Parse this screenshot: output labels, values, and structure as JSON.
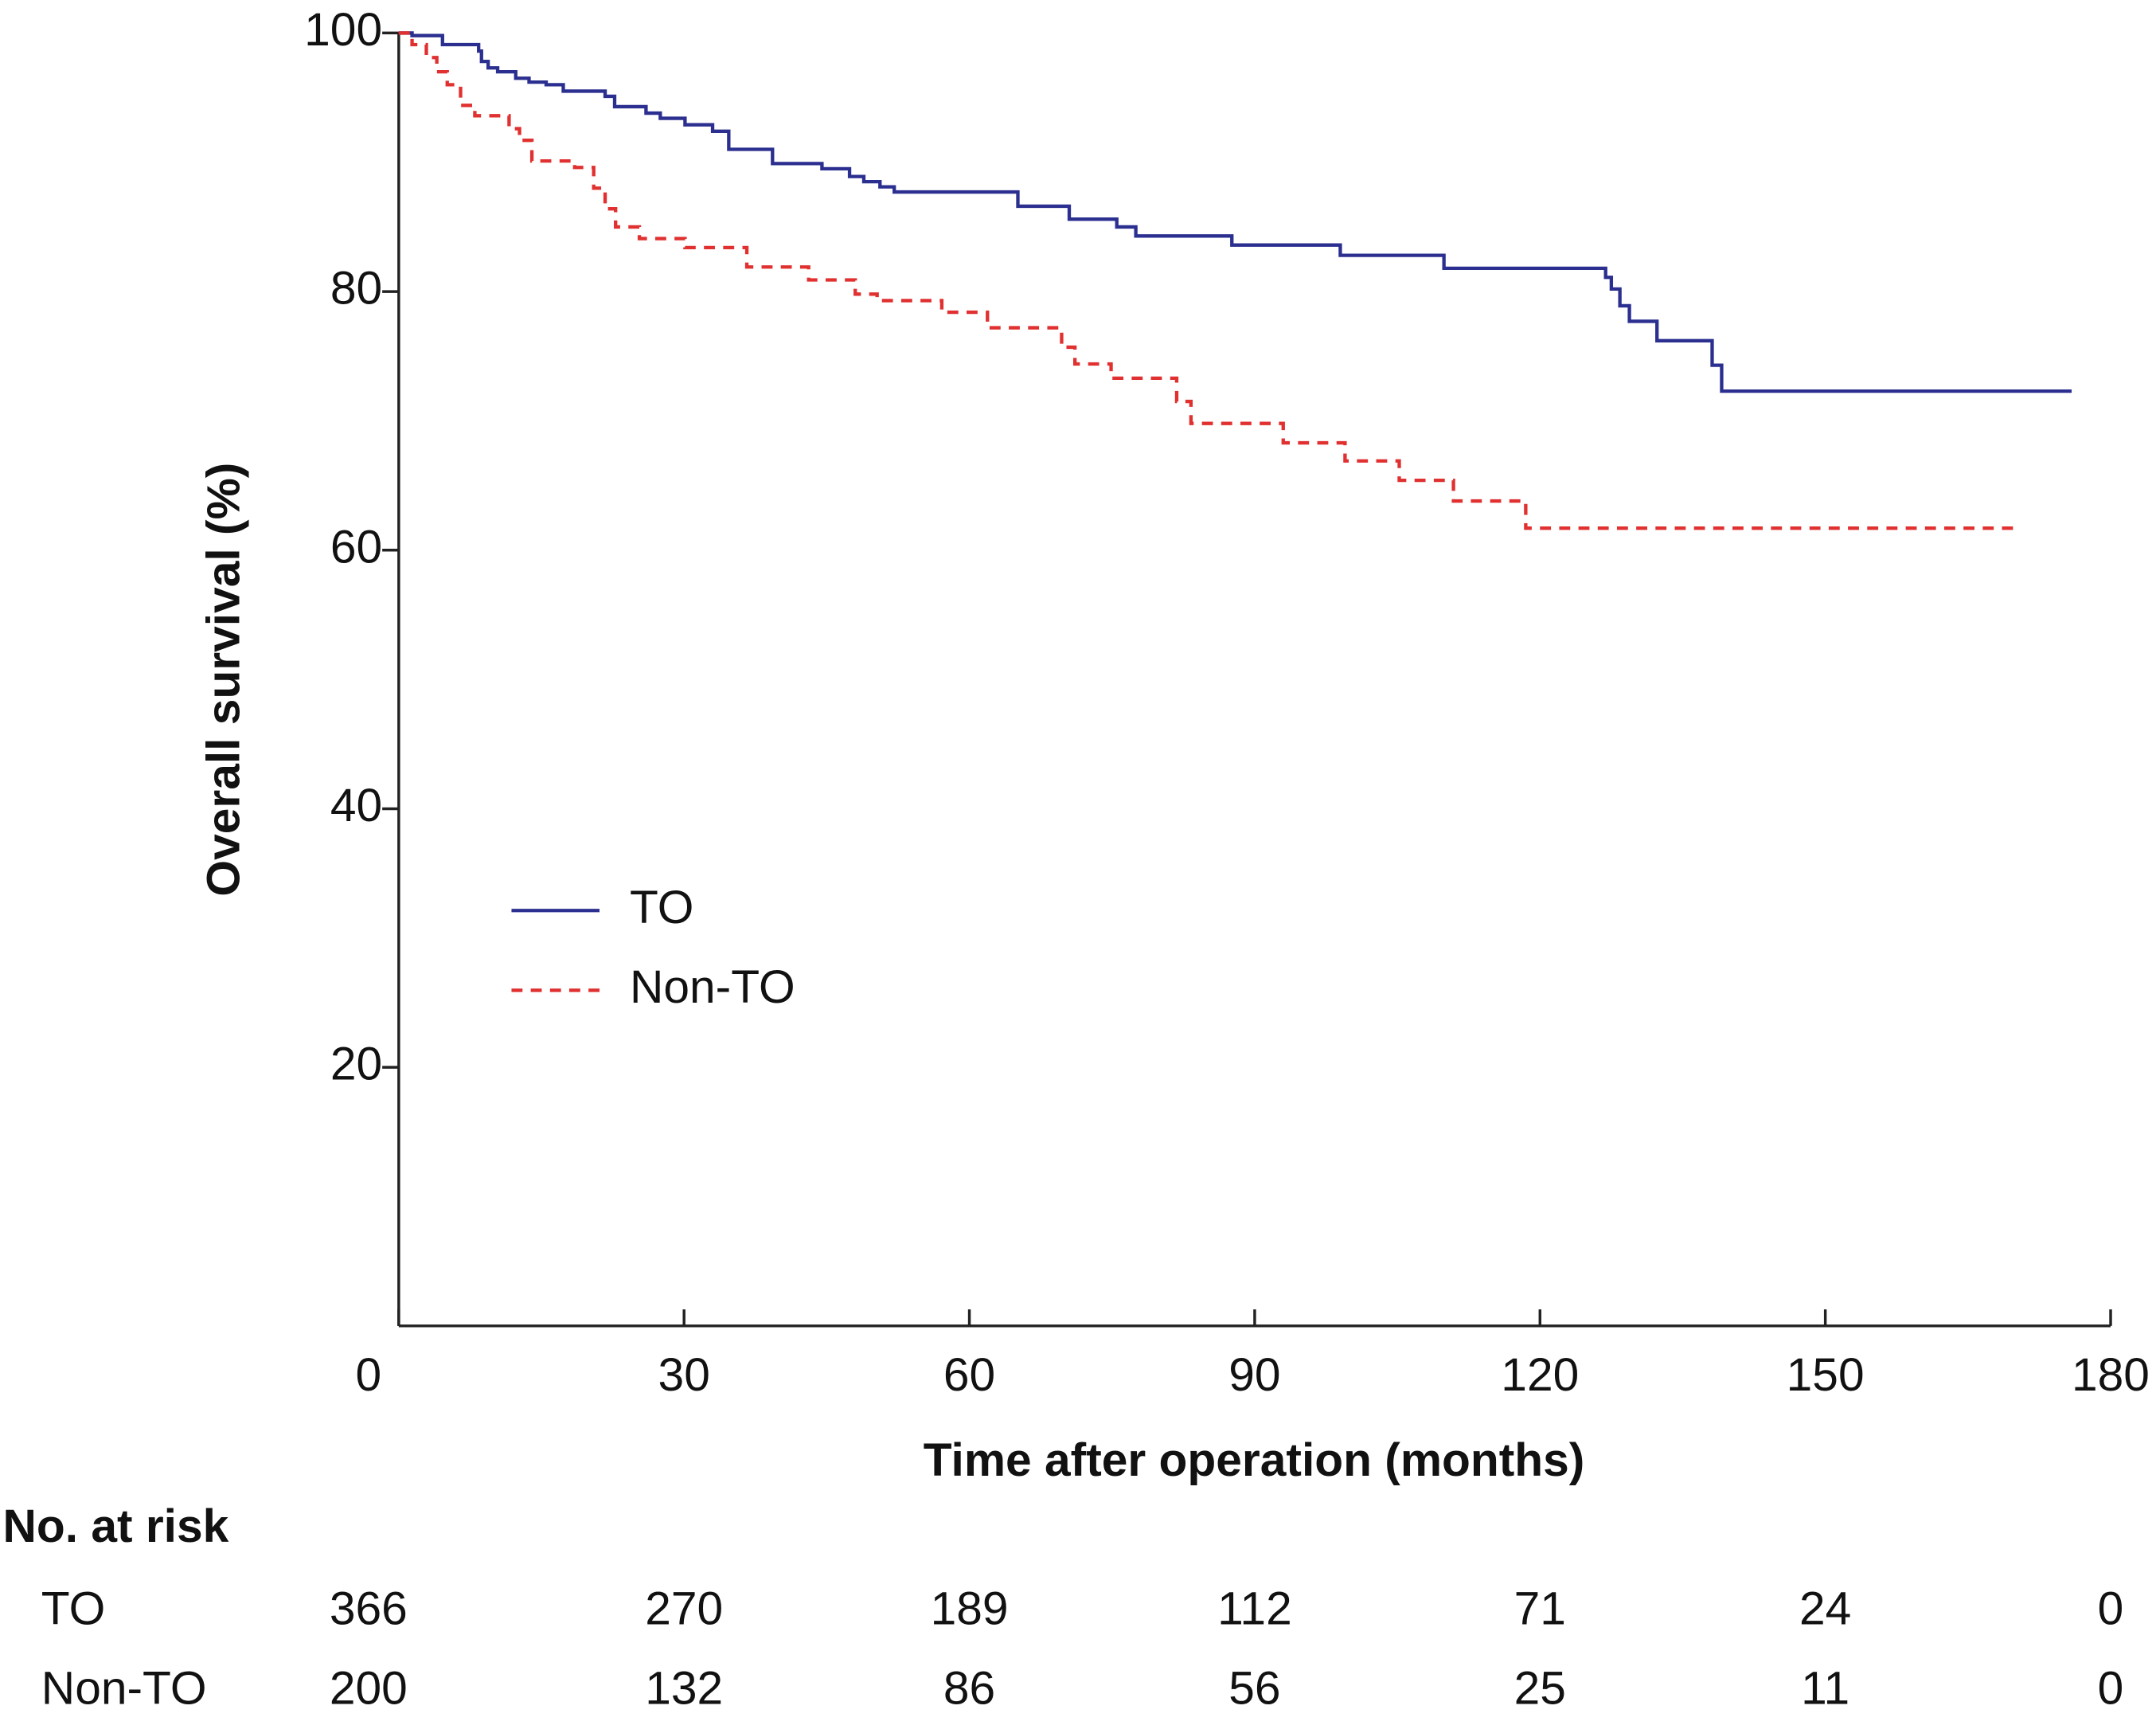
{
  "chart_data": {
    "type": "step",
    "x_label": "Time after operation (months)",
    "y_label": "Overall survival (%)",
    "xlim": [
      0,
      180
    ],
    "ylim": [
      0,
      100
    ],
    "xticks": [
      0,
      30,
      60,
      90,
      120,
      150,
      180
    ],
    "yticks": [
      20,
      40,
      60,
      80,
      100
    ],
    "legend": "center left",
    "series": [
      {
        "name": "TO",
        "color": "#2b2f8f",
        "dash": "solid",
        "x": [
          0,
          1.4,
          4.6,
          8.4,
          8.7,
          9.4,
          10.4,
          12.3,
          13.7,
          15.5,
          17.3,
          21.7,
          22.7,
          26.0,
          27.5,
          30.1,
          33.0,
          34.7,
          39.3,
          44.5,
          47.4,
          48.9,
          50.6,
          52.1,
          65.1,
          70.5,
          75.5,
          77.5,
          87.6,
          99.0,
          109.9,
          126.9,
          127.5,
          128.4,
          129.4,
          132.3,
          138.1,
          139.1,
          175.9
        ],
        "values": [
          100,
          99.8,
          99.1,
          98.6,
          97.8,
          97.3,
          97.0,
          96.5,
          96.2,
          96.0,
          95.5,
          95.1,
          94.3,
          93.8,
          93.4,
          92.9,
          92.4,
          91.0,
          89.9,
          89.5,
          88.9,
          88.5,
          88.1,
          87.7,
          86.6,
          85.6,
          85.0,
          84.3,
          83.6,
          82.8,
          81.8,
          81.1,
          80.2,
          78.9,
          77.7,
          76.2,
          74.3,
          72.3,
          72.3
        ]
      },
      {
        "name": "Non-TO",
        "color": "#e03030",
        "dash": "dashed",
        "x": [
          0,
          1.4,
          2.9,
          4.0,
          5.1,
          6.5,
          8.0,
          11.6,
          12.7,
          14.0,
          18.5,
          20.5,
          21.7,
          22.8,
          25.3,
          30.1,
          36.6,
          43.1,
          48.0,
          50.3,
          57.1,
          61.9,
          69.7,
          71.1,
          74.9,
          81.8,
          83.3,
          93.0,
          99.5,
          105.2,
          110.9,
          118.5,
          170.6
        ],
        "values": [
          100,
          99.1,
          98.1,
          97.0,
          96.0,
          94.4,
          93.6,
          92.6,
          91.7,
          90.1,
          89.6,
          88.0,
          86.4,
          85.0,
          84.1,
          83.4,
          81.9,
          80.9,
          79.8,
          79.3,
          78.4,
          77.2,
          75.7,
          74.4,
          73.3,
          71.5,
          69.8,
          68.3,
          66.9,
          65.4,
          63.8,
          61.7,
          61.7
        ]
      }
    ],
    "risk_table": {
      "title": "No. at risk",
      "rows": [
        {
          "name": "TO",
          "values": [
            366,
            270,
            189,
            112,
            71,
            24,
            0
          ]
        },
        {
          "name": "Non-TO",
          "values": [
            200,
            132,
            86,
            56,
            25,
            11,
            0
          ]
        }
      ]
    }
  }
}
